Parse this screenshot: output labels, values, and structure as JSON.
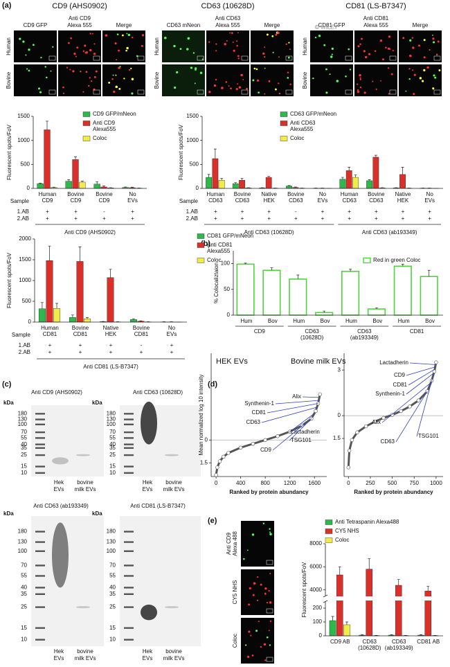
{
  "figure": {
    "panel_labels": [
      "(a)",
      "(b)",
      "(c)",
      "(d)",
      "(e)"
    ],
    "watermark": "© WILEY"
  },
  "micrographs": {
    "groups": [
      {
        "title": "CD9 (AHS0902)",
        "columns": [
          [
            "CD9 GFP"
          ],
          [
            "Anti CD9",
            "Alexa 555"
          ],
          [
            "Merge"
          ]
        ],
        "rows": [
          "Human",
          "Bovine"
        ]
      },
      {
        "title": "CD63  (10628D)",
        "columns": [
          [
            "CD63 mNeon"
          ],
          [
            "Anti CD63",
            "Alexa 555"
          ],
          [
            "Merge"
          ]
        ],
        "rows": [
          "Human",
          "Bovine"
        ]
      },
      {
        "title": "CD81 (LS-B7347)",
        "columns": [
          [
            "CD81 GFP"
          ],
          [
            "Anti CD81",
            "Alexa 555"
          ],
          [
            "Merge"
          ]
        ],
        "rows": [
          "Human",
          "Bovine"
        ]
      }
    ],
    "panel_e_rows": [
      [
        "Anti CD9",
        "Alexa 488"
      ],
      [
        "CY5 NHS"
      ],
      [
        "Coloc"
      ]
    ]
  },
  "blots": [
    {
      "title": "Anti CD9 (AHS0902)",
      "unit": "kDa",
      "markers": [
        180,
        130,
        100,
        70,
        55,
        40,
        35,
        25,
        15,
        10
      ],
      "lanes": [
        [
          "Hek",
          "EVs"
        ],
        [
          "bovine",
          "milk EVs"
        ]
      ]
    },
    {
      "title": "Anti CD63 (10628D)",
      "unit": "kDa",
      "markers": [
        180,
        130,
        100,
        70,
        55,
        40,
        35,
        25,
        15,
        10
      ],
      "lanes": [
        [
          "Hek",
          "EVs"
        ],
        [
          "bovine",
          "milk EVs"
        ]
      ]
    },
    {
      "title": "Anti CD63 (ab193349)",
      "unit": "kDa",
      "markers": [
        180,
        130,
        100,
        70,
        55,
        40,
        35,
        25,
        15,
        10
      ],
      "lanes": [
        [
          "Hek",
          "EVs"
        ],
        [
          "bovine",
          "milk EVs"
        ]
      ]
    },
    {
      "title": "Anti CD81 (LS-B7347)",
      "unit": "kDa",
      "markers": [
        180,
        130,
        100,
        70,
        55,
        40,
        35,
        25,
        15,
        10
      ],
      "lanes": [
        [
          "Hek",
          "EVs"
        ],
        [
          "bovine",
          "milk EVs"
        ]
      ]
    }
  ],
  "chart_data": [
    {
      "type": "bar",
      "ylabel": "Fluorescent spots/FoV",
      "ylim": [
        0,
        1500
      ],
      "yticks": [
        0,
        500,
        1000,
        1500
      ],
      "categories": [
        [
          "Human",
          "CD9"
        ],
        [
          "Bovine",
          "CD9"
        ],
        [
          "Bovine",
          "CD9"
        ],
        [
          "No",
          "EVs"
        ]
      ],
      "series": [
        {
          "name": "CD9 GFP/mNeon",
          "color": "#2db84a",
          "values": [
            100,
            150,
            90,
            20
          ],
          "errors": [
            10,
            30,
            50,
            10
          ]
        },
        {
          "name": [
            "Anti CD9",
            "Alexa555"
          ],
          "color": "#d9302a",
          "values": [
            1220,
            600,
            30,
            15
          ],
          "errors": [
            180,
            60,
            20,
            10
          ]
        },
        {
          "name": "Coloc",
          "color": "#f2ec4a",
          "values": [
            20,
            130,
            10,
            5
          ],
          "errors": [
            5,
            20,
            5,
            3
          ]
        }
      ],
      "sample_label": "Sample",
      "ab_rows": [
        {
          "label": "1.AB",
          "values": [
            "+",
            "+",
            "-",
            "+"
          ]
        },
        {
          "label": "2.AB",
          "values": [
            "+",
            "+",
            "+",
            "+"
          ]
        }
      ],
      "brackets": [
        "Anti CD9 (AHS0902)"
      ]
    },
    {
      "type": "bar",
      "ylabel": "Fluorescent spots/FoV",
      "ylim": [
        0,
        1500
      ],
      "yticks": [
        0,
        500,
        1000,
        1500
      ],
      "categories": [
        [
          "Human",
          "CD63"
        ],
        [
          "Bovine",
          "CD63"
        ],
        [
          "Native",
          "HEK"
        ],
        [
          "Bovine",
          "CD63"
        ],
        [
          "No",
          "EVs"
        ],
        [
          "Human",
          "CD63"
        ],
        [
          "Bovine",
          "CD63"
        ],
        [
          "Native",
          "HEK"
        ],
        [
          "No",
          "EVs"
        ]
      ],
      "series": [
        {
          "name": "CD63 GFP/mNeon",
          "color": "#2db84a",
          "values": [
            230,
            100,
            10,
            50,
            5,
            190,
            160,
            10,
            5
          ],
          "errors": [
            60,
            20,
            5,
            10,
            3,
            40,
            20,
            5,
            3
          ]
        },
        {
          "name": [
            "Anti CD63",
            "Alexa555"
          ],
          "color": "#d9302a",
          "values": [
            620,
            170,
            230,
            20,
            5,
            370,
            650,
            290,
            5
          ],
          "errors": [
            200,
            40,
            20,
            10,
            3,
            70,
            40,
            150,
            3
          ]
        },
        {
          "name": "Coloc",
          "color": "#f2ec4a",
          "values": [
            170,
            10,
            5,
            5,
            2,
            230,
            10,
            5,
            2
          ],
          "errors": [
            40,
            5,
            3,
            3,
            1,
            50,
            5,
            3,
            1
          ]
        }
      ],
      "sample_label": "Sample",
      "ab_rows": [
        {
          "label": "1.AB",
          "values": [
            "+",
            "+",
            "+",
            "-",
            "+",
            "+",
            "+",
            "+",
            "+"
          ]
        },
        {
          "label": "2.AB",
          "values": [
            "+",
            "+",
            "+",
            "+",
            "+",
            "+",
            "+",
            "+",
            "+"
          ]
        }
      ],
      "brackets": [
        "Anti CD63 (10628D)",
        "Anti CD63 (ab193349)"
      ]
    },
    {
      "type": "bar",
      "ylabel": "Fluorescent spots/FoV",
      "ylim": [
        0,
        2000
      ],
      "yticks": [
        0,
        500,
        1000,
        1500,
        2000
      ],
      "categories": [
        [
          "Human",
          "CD81"
        ],
        [
          "Bovine",
          "CD81"
        ],
        [
          "Native",
          "HEK"
        ],
        [
          "Bovine",
          "CD81"
        ],
        [
          "No",
          "EVs"
        ]
      ],
      "series": [
        {
          "name": "CD81 GFP/mNeon",
          "color": "#2db84a",
          "values": [
            320,
            110,
            10,
            60,
            5
          ],
          "errors": [
            150,
            60,
            5,
            20,
            3
          ]
        },
        {
          "name": [
            "Anti CD81",
            "Alexa555"
          ],
          "color": "#d9302a",
          "values": [
            1480,
            1460,
            1070,
            20,
            5
          ],
          "errors": [
            350,
            350,
            200,
            10,
            3
          ]
        },
        {
          "name": "Coloc",
          "color": "#f2ec4a",
          "values": [
            330,
            80,
            5,
            5,
            2
          ],
          "errors": [
            120,
            30,
            3,
            3,
            1
          ]
        }
      ],
      "sample_label": "Sample",
      "ab_rows": [
        {
          "label": "1.AB",
          "values": [
            "+",
            "+",
            "+",
            "-",
            "+"
          ]
        },
        {
          "label": "2.AB",
          "values": [
            "+",
            "+",
            "+",
            "+",
            "+"
          ]
        }
      ],
      "brackets": [
        "Anti CD81 (LS-B7347)"
      ]
    },
    {
      "type": "bar",
      "bar_style": "outline",
      "ylabel": "% Colocaliztaion",
      "ylim": [
        0,
        125
      ],
      "yticks": [
        0,
        50,
        100
      ],
      "categories": [
        "Hum",
        "Bov",
        "Hum",
        "Bov",
        "Hum",
        "Bov",
        "Hum",
        "Bov"
      ],
      "groups": [
        "CD9",
        [
          "CD63",
          "(10628D)"
        ],
        [
          "CD63",
          "(ab193349)"
        ],
        "CD81"
      ],
      "series": [
        {
          "name": "Red in green Coloc",
          "color": "#4cd43a",
          "values": [
            99,
            87,
            70,
            5,
            85,
            12,
            95,
            75
          ],
          "errors": [
            2,
            5,
            8,
            3,
            4,
            2,
            4,
            12
          ]
        }
      ]
    },
    {
      "type": "line",
      "title": "HEK EVs",
      "ylabel": "Mean normalized log 10 intensity",
      "xlabel": "Ranked by protein abundancy",
      "color": "#555555",
      "x": [
        0,
        20,
        60,
        120,
        200,
        400,
        600,
        800,
        1000,
        1200,
        1400,
        1550,
        1620,
        1660,
        1690
      ],
      "values": [
        -2.3,
        -1.8,
        -1.4,
        -1.1,
        -0.85,
        -0.5,
        -0.25,
        0,
        0.25,
        0.55,
        0.95,
        1.4,
        1.9,
        2.4,
        3.0
      ],
      "xlim": [
        -80,
        1800
      ],
      "ylim": [
        -2.4,
        5.7
      ],
      "xticks": [
        0,
        400,
        800,
        1200,
        1600
      ],
      "yticks": [
        0,
        {
          "value": -1.5,
          "label": "1.5"
        }
      ],
      "reference_line": 0,
      "annotations": [
        {
          "text": "Alix",
          "x": 1680
        },
        {
          "text": "Synthenin-1",
          "x": 1670
        },
        {
          "text": "CD81",
          "x": 1660
        },
        {
          "text": "CD63",
          "x": 1640
        },
        {
          "text": "Lactadherin",
          "x": 1600
        },
        {
          "text": "TSG101",
          "x": 1550
        },
        {
          "text": "CD9",
          "x": 1450
        }
      ]
    },
    {
      "type": "line",
      "title": "Bovine milk EVs",
      "xlabel": "Ranked by protein abundancy",
      "color": "#555555",
      "x": [
        0,
        10,
        40,
        100,
        200,
        300,
        400,
        500,
        600,
        700,
        800,
        900,
        950,
        980,
        1000
      ],
      "values": [
        -3.4,
        -2.3,
        -1.6,
        -1.1,
        -0.7,
        -0.4,
        -0.15,
        0.05,
        0.3,
        0.6,
        1.0,
        1.6,
        2.3,
        2.9,
        3.5
      ],
      "xlim": [
        -50,
        1080
      ],
      "ylim": [
        -4,
        4.1
      ],
      "xticks": [
        0,
        250,
        500,
        750,
        1000
      ],
      "yticks": [
        3,
        0,
        {
          "value": -1.5,
          "label": "1.5"
        }
      ],
      "reference_line": 0,
      "annotations": [
        {
          "text": "Lactadherin",
          "x": 995
        },
        {
          "text": "CD9",
          "x": 990
        },
        {
          "text": "CD81",
          "x": 985
        },
        {
          "text": "Synthenin-1",
          "x": 975
        },
        {
          "text": "Alix",
          "x": 940
        },
        {
          "text": "CD63",
          "x": 900
        },
        {
          "text": "TSG101",
          "x": 960
        }
      ]
    },
    {
      "type": "bar",
      "ylabel": "Fluorescent spots/FoV",
      "ylim": [
        0,
        8000
      ],
      "ybreak": [
        250,
        3500
      ],
      "yticks": [
        0,
        100,
        200,
        4000,
        6000,
        8000
      ],
      "categories": [
        "CD9 AB",
        [
          "CD63",
          "(10628D)"
        ],
        [
          "CD63",
          "(ab193349)"
        ],
        "CD81 AB"
      ],
      "series": [
        {
          "name": "Anti Tetraspanin Alexa488",
          "color": "#2db84a",
          "values": [
            110,
            5,
            5,
            5
          ],
          "errors": [
            30,
            3,
            3,
            3
          ]
        },
        {
          "name": "CY5 NHS",
          "color": "#d9302a",
          "values": [
            5300,
            5800,
            4400,
            3900
          ],
          "errors": [
            700,
            900,
            500,
            400
          ]
        },
        {
          "name": "Coloc",
          "color": "#f2ec4a",
          "values": [
            80,
            2,
            2,
            2
          ],
          "errors": [
            20,
            1,
            1,
            1
          ]
        }
      ]
    }
  ]
}
